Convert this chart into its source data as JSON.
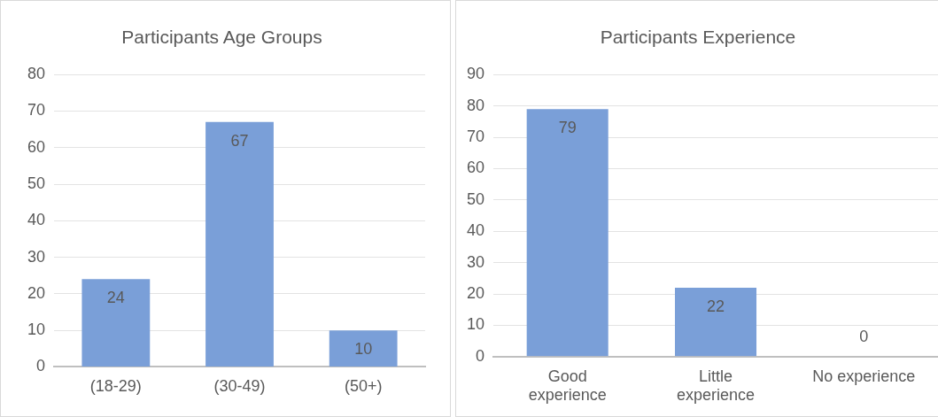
{
  "chart_data": [
    {
      "type": "bar",
      "title": "Participants Age Groups",
      "categories": [
        "(18-29)",
        "(30-49)",
        "(50+)"
      ],
      "values": [
        24,
        67,
        10
      ],
      "color": "#7a9fd8",
      "ylim": [
        0,
        80
      ],
      "yticks": [
        0,
        10,
        20,
        30,
        40,
        50,
        60,
        70,
        80
      ],
      "grid": "y",
      "data_labels": true,
      "legend": false
    },
    {
      "type": "bar",
      "title": "Participants Experience",
      "categories": [
        "Good experience",
        "Little experience",
        "No experience"
      ],
      "values": [
        79,
        22,
        0
      ],
      "color": "#7a9fd8",
      "ylim": [
        0,
        90
      ],
      "yticks": [
        0,
        10,
        20,
        30,
        40,
        50,
        60,
        70,
        80,
        90
      ],
      "grid": "y",
      "data_labels": true,
      "legend": false
    }
  ]
}
